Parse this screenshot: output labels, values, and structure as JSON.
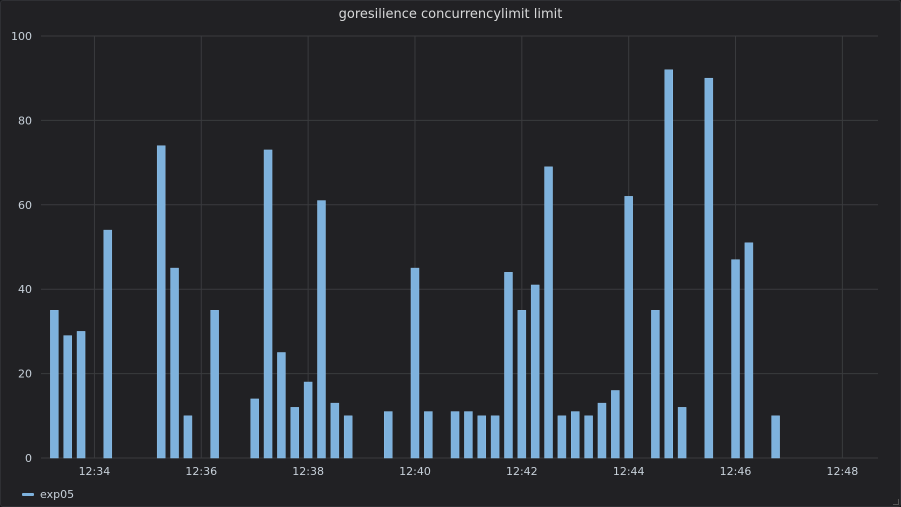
{
  "panel": {
    "title": "goresilience concurrencylimit limit"
  },
  "colors": {
    "background": "#212124",
    "grid": "#3a3b3e",
    "bar": "#7eb2dd",
    "bar_border": "#8fc1ea",
    "text": "#c7d0d9"
  },
  "chart_data": {
    "type": "bar",
    "title": "goresilience concurrencylimit limit",
    "xlabel": "",
    "ylabel": "",
    "ylim": [
      0,
      100
    ],
    "yticks": [
      0,
      20,
      40,
      60,
      80,
      100
    ],
    "xlim": [
      "12:33:00",
      "12:48:40"
    ],
    "xticks": [
      "12:34",
      "12:36",
      "12:38",
      "12:40",
      "12:42",
      "12:44",
      "12:46",
      "12:48"
    ],
    "grid": true,
    "legend_position": "bottom-left",
    "series": [
      {
        "name": "exp05",
        "color": "#7eb2dd",
        "points": [
          {
            "x": "12:33:15",
            "y": 35
          },
          {
            "x": "12:33:30",
            "y": 29
          },
          {
            "x": "12:33:45",
            "y": 30
          },
          {
            "x": "12:34:15",
            "y": 54
          },
          {
            "x": "12:35:15",
            "y": 74
          },
          {
            "x": "12:35:30",
            "y": 45
          },
          {
            "x": "12:35:45",
            "y": 10
          },
          {
            "x": "12:36:15",
            "y": 35
          },
          {
            "x": "12:37:00",
            "y": 14
          },
          {
            "x": "12:37:15",
            "y": 73
          },
          {
            "x": "12:37:30",
            "y": 25
          },
          {
            "x": "12:37:45",
            "y": 12
          },
          {
            "x": "12:38:00",
            "y": 18
          },
          {
            "x": "12:38:15",
            "y": 61
          },
          {
            "x": "12:38:30",
            "y": 13
          },
          {
            "x": "12:38:45",
            "y": 10
          },
          {
            "x": "12:39:30",
            "y": 11
          },
          {
            "x": "12:40:00",
            "y": 45
          },
          {
            "x": "12:40:15",
            "y": 11
          },
          {
            "x": "12:40:45",
            "y": 11
          },
          {
            "x": "12:41:00",
            "y": 11
          },
          {
            "x": "12:41:15",
            "y": 10
          },
          {
            "x": "12:41:30",
            "y": 10
          },
          {
            "x": "12:41:45",
            "y": 44
          },
          {
            "x": "12:42:00",
            "y": 35
          },
          {
            "x": "12:42:15",
            "y": 41
          },
          {
            "x": "12:42:30",
            "y": 69
          },
          {
            "x": "12:42:45",
            "y": 10
          },
          {
            "x": "12:43:00",
            "y": 11
          },
          {
            "x": "12:43:15",
            "y": 10
          },
          {
            "x": "12:43:30",
            "y": 13
          },
          {
            "x": "12:43:45",
            "y": 16
          },
          {
            "x": "12:44:00",
            "y": 62
          },
          {
            "x": "12:44:30",
            "y": 35
          },
          {
            "x": "12:44:45",
            "y": 92
          },
          {
            "x": "12:45:00",
            "y": 12
          },
          {
            "x": "12:45:30",
            "y": 90
          },
          {
            "x": "12:46:00",
            "y": 47
          },
          {
            "x": "12:46:15",
            "y": 51
          },
          {
            "x": "12:46:45",
            "y": 10
          }
        ]
      }
    ]
  }
}
